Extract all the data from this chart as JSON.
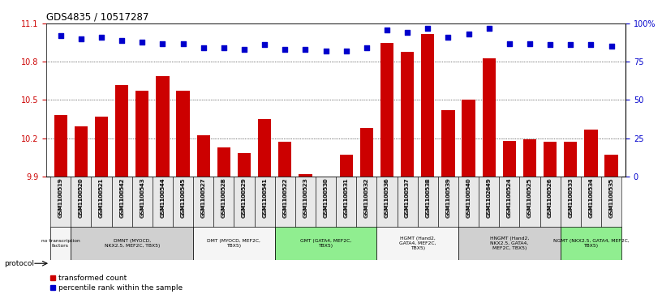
{
  "title": "GDS4835 / 10517287",
  "samples": [
    "GSM1100519",
    "GSM1100520",
    "GSM1100521",
    "GSM1100542",
    "GSM1100543",
    "GSM1100544",
    "GSM1100545",
    "GSM1100527",
    "GSM1100528",
    "GSM1100529",
    "GSM1100541",
    "GSM1100522",
    "GSM1100523",
    "GSM1100530",
    "GSM1100531",
    "GSM1100532",
    "GSM1100536",
    "GSM1100537",
    "GSM1100538",
    "GSM1100539",
    "GSM1100540",
    "GSM1102649",
    "GSM1100524",
    "GSM1100525",
    "GSM1100526",
    "GSM1100533",
    "GSM1100534",
    "GSM1100535"
  ],
  "bar_values": [
    10.38,
    10.29,
    10.37,
    10.62,
    10.57,
    10.69,
    10.57,
    10.22,
    10.13,
    10.08,
    10.35,
    10.17,
    9.92,
    9.9,
    10.07,
    10.28,
    10.95,
    10.88,
    11.02,
    10.42,
    10.5,
    10.83,
    10.18,
    10.19,
    10.17,
    10.17,
    10.27,
    10.07
  ],
  "dot_values_pct": [
    92,
    90,
    91,
    89,
    88,
    87,
    87,
    84,
    84,
    83,
    86,
    83,
    83,
    82,
    82,
    84,
    96,
    94,
    97,
    91,
    93,
    97,
    87,
    87,
    86,
    86,
    86,
    85
  ],
  "ylim_left": [
    9.9,
    11.1
  ],
  "ylim_right": [
    0,
    100
  ],
  "yticks_left": [
    9.9,
    10.2,
    10.5,
    10.8,
    11.1
  ],
  "yticks_right": [
    0,
    25,
    50,
    75,
    100
  ],
  "ytick_labels_right": [
    "0",
    "25",
    "50",
    "75",
    "100%"
  ],
  "bar_color": "#CC0000",
  "dot_color": "#0000CC",
  "protocol_group_spans": [
    {
      "label": "no transcription\nfactors",
      "indices": [
        0
      ],
      "color": "#f5f5f5"
    },
    {
      "label": "DMNT (MYOCD,\nNKX2.5, MEF2C, TBX5)",
      "indices": [
        1,
        2,
        3,
        4,
        5,
        6
      ],
      "color": "#d0d0d0"
    },
    {
      "label": "DMT (MYOCD, MEF2C,\nTBX5)",
      "indices": [
        7,
        8,
        9,
        10
      ],
      "color": "#f5f5f5"
    },
    {
      "label": "GMT (GATA4, MEF2C,\nTBX5)",
      "indices": [
        11,
        12,
        13,
        14,
        15
      ],
      "color": "#90EE90"
    },
    {
      "label": "HGMT (Hand2,\nGATA4, MEF2C,\nTBX5)",
      "indices": [
        16,
        17,
        18,
        19
      ],
      "color": "#f5f5f5"
    },
    {
      "label": "HNGMT (Hand2,\nNKX2.5, GATA4,\nMEF2C, TBX5)",
      "indices": [
        20,
        21,
        22,
        23,
        24
      ],
      "color": "#d0d0d0"
    },
    {
      "label": "NGMT (NKX2.5, GATA4, MEF2C,\nTBX5)",
      "indices": [
        25,
        26,
        27
      ],
      "color": "#90EE90"
    }
  ]
}
